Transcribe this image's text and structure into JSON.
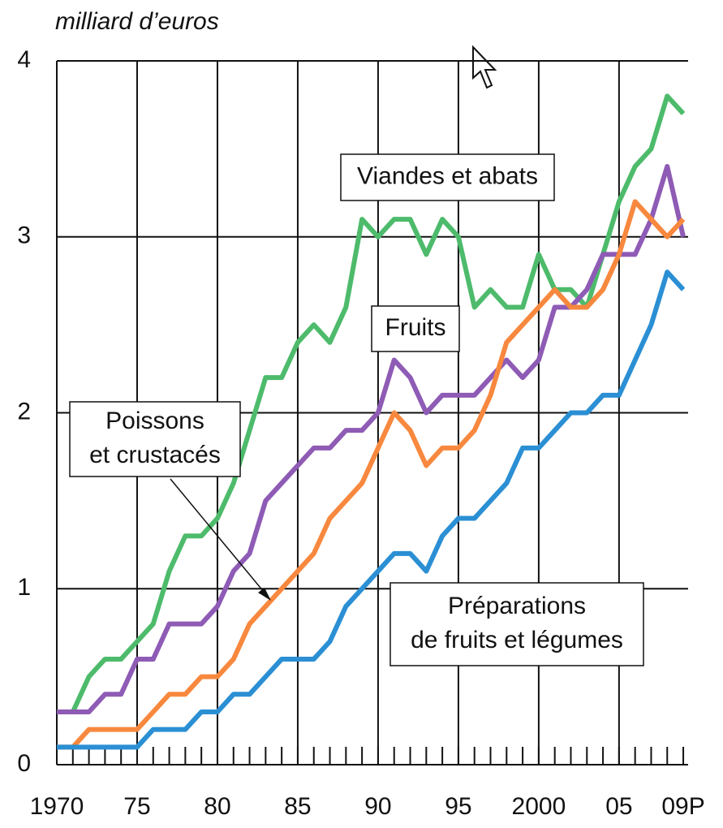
{
  "chart_data": {
    "type": "line",
    "y_axis_label": "milliard d’euros",
    "x": [
      1970,
      1971,
      1972,
      1973,
      1974,
      1975,
      1976,
      1977,
      1978,
      1979,
      1980,
      1981,
      1982,
      1983,
      1984,
      1985,
      1986,
      1987,
      1988,
      1989,
      1990,
      1991,
      1992,
      1993,
      1994,
      1995,
      1996,
      1997,
      1998,
      1999,
      2000,
      2001,
      2002,
      2003,
      2004,
      2005,
      2006,
      2007,
      2008,
      2009
    ],
    "series": [
      {
        "name": "Viandes et abats",
        "color": "#4dbb6b",
        "values": [
          0.3,
          0.3,
          0.5,
          0.6,
          0.6,
          0.7,
          0.8,
          1.1,
          1.3,
          1.3,
          1.4,
          1.6,
          1.9,
          2.2,
          2.2,
          2.4,
          2.5,
          2.4,
          2.6,
          3.1,
          3.0,
          3.1,
          3.1,
          2.9,
          3.1,
          3.0,
          2.6,
          2.7,
          2.6,
          2.6,
          2.9,
          2.7,
          2.7,
          2.6,
          2.9,
          3.2,
          3.4,
          3.5,
          3.8,
          3.7
        ]
      },
      {
        "name": "Fruits",
        "color": "#8e5bb5",
        "values": [
          0.3,
          0.3,
          0.3,
          0.4,
          0.4,
          0.6,
          0.6,
          0.8,
          0.8,
          0.8,
          0.9,
          1.1,
          1.2,
          1.5,
          1.6,
          1.7,
          1.8,
          1.8,
          1.9,
          1.9,
          2.0,
          2.3,
          2.2,
          2.0,
          2.1,
          2.1,
          2.1,
          2.2,
          2.3,
          2.2,
          2.3,
          2.6,
          2.6,
          2.7,
          2.9,
          2.9,
          2.9,
          3.1,
          3.4,
          3.0
        ]
      },
      {
        "name": "Poissons et crustacés",
        "color": "#f7883e",
        "values": [
          0.1,
          0.1,
          0.2,
          0.2,
          0.2,
          0.2,
          0.3,
          0.4,
          0.4,
          0.5,
          0.5,
          0.6,
          0.8,
          0.9,
          1.0,
          1.1,
          1.2,
          1.4,
          1.5,
          1.6,
          1.8,
          2.0,
          1.9,
          1.7,
          1.8,
          1.8,
          1.9,
          2.1,
          2.4,
          2.5,
          2.6,
          2.7,
          2.6,
          2.6,
          2.7,
          2.9,
          3.2,
          3.1,
          3.0,
          3.1
        ]
      },
      {
        "name": "Préparations de fruits et légumes",
        "color": "#2b8fd4",
        "values": [
          0.1,
          0.1,
          0.1,
          0.1,
          0.1,
          0.1,
          0.2,
          0.2,
          0.2,
          0.3,
          0.3,
          0.4,
          0.4,
          0.5,
          0.6,
          0.6,
          0.6,
          0.7,
          0.9,
          1.0,
          1.1,
          1.2,
          1.2,
          1.1,
          1.3,
          1.4,
          1.4,
          1.5,
          1.6,
          1.8,
          1.8,
          1.9,
          2.0,
          2.0,
          2.1,
          2.1,
          2.3,
          2.5,
          2.8,
          2.7
        ]
      }
    ],
    "annotations": [
      {
        "text": [
          "Viandes et abats"
        ]
      },
      {
        "text": [
          "Fruits"
        ]
      },
      {
        "text": [
          "Poissons",
          "et crustacés"
        ]
      },
      {
        "text": [
          "Préparations",
          "de fruits et légumes"
        ]
      }
    ],
    "xlim": [
      1970,
      2009.3
    ],
    "xticks": [
      1970,
      {
        "value": 1975,
        "label": "75"
      },
      {
        "value": 1980,
        "label": "80"
      },
      {
        "value": 1985,
        "label": "85"
      },
      {
        "value": 1990,
        "label": "90"
      },
      {
        "value": 1995,
        "label": "95"
      },
      2000,
      {
        "value": 2005,
        "label": "05"
      },
      {
        "value": 2009,
        "label": "09P"
      }
    ],
    "ylim": [
      0,
      4
    ],
    "yticks": [
      0,
      1,
      2,
      3,
      4
    ],
    "grid": true
  }
}
